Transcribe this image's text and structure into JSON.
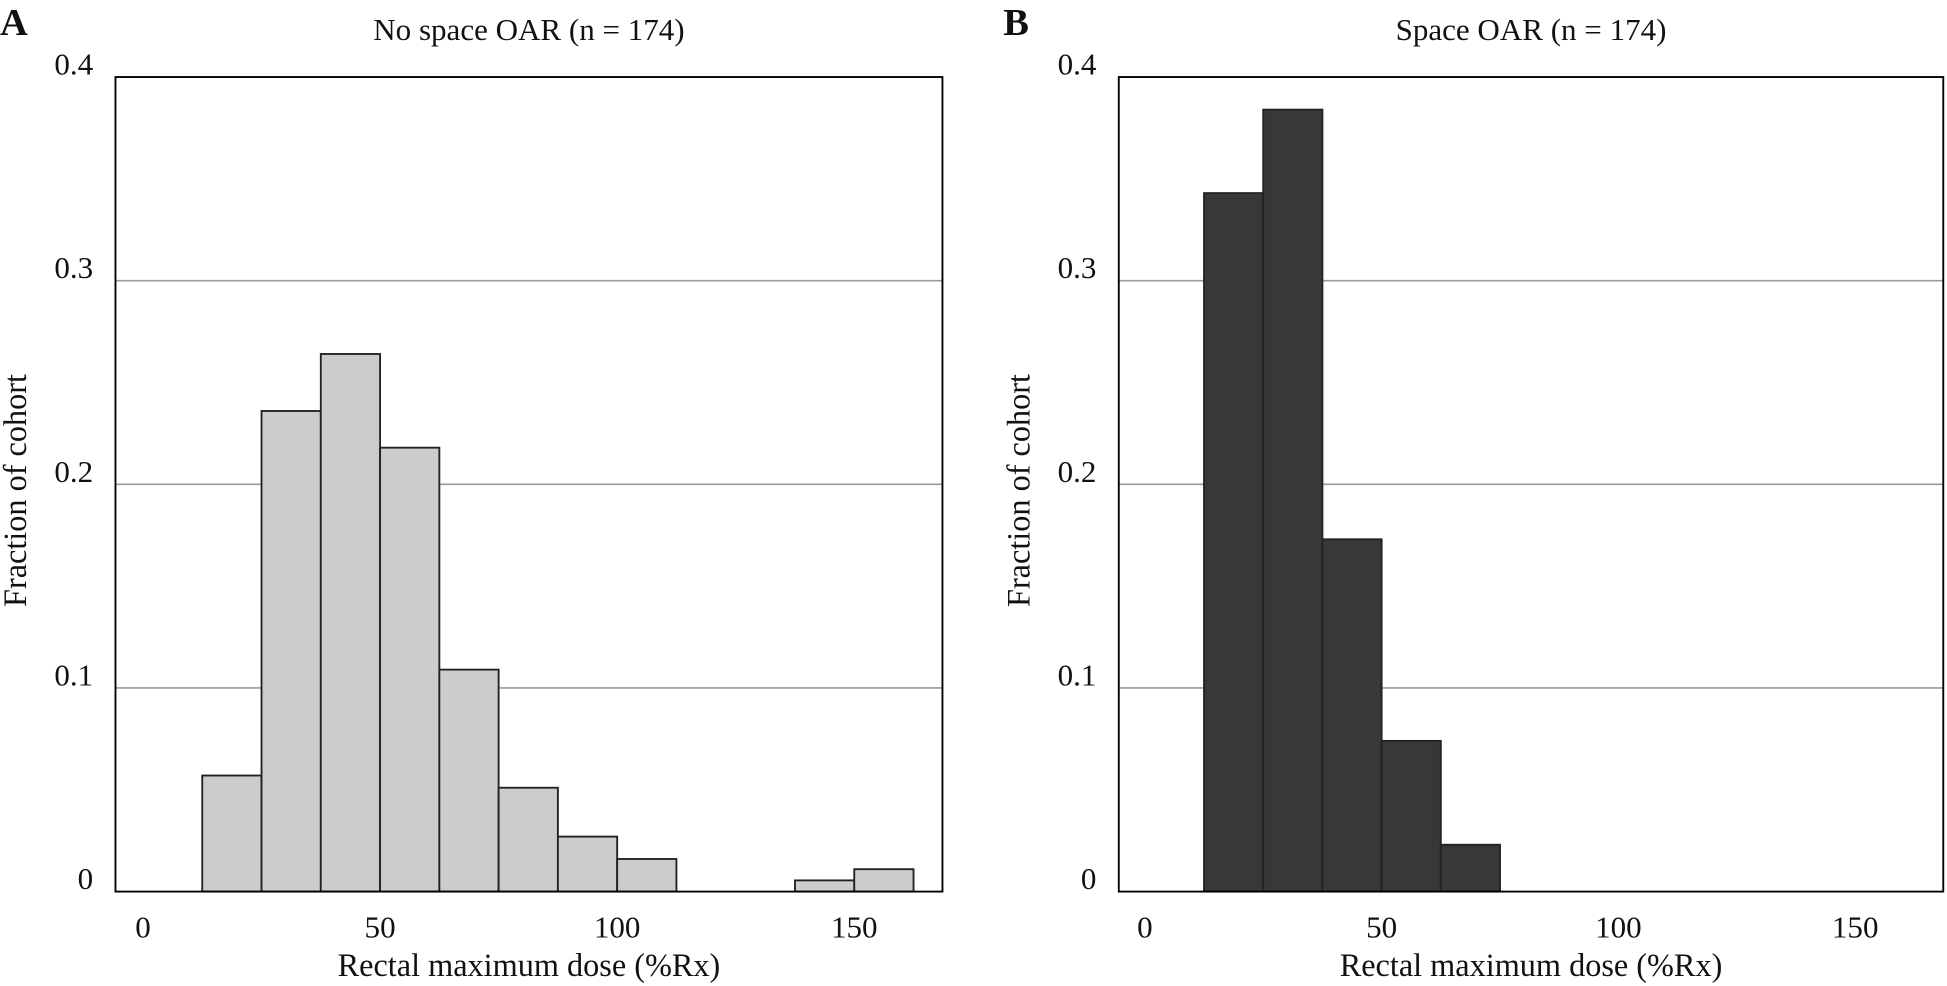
{
  "chart_data": [
    {
      "type": "histogram",
      "panel_label": "A",
      "title": "No space OAR (n = 174)",
      "xlabel": "Rectal maximum dose (%Rx)",
      "ylabel": "Fraction of cohort",
      "bins": [
        12.5,
        25,
        37.5,
        50,
        62.5,
        75,
        87.5,
        100,
        112.5,
        125,
        137.5,
        150,
        162.5
      ],
      "values": [
        0.057,
        0.236,
        0.264,
        0.218,
        0.109,
        0.051,
        0.027,
        0.016,
        0,
        0,
        0.0055,
        0.011
      ],
      "color": "#cccccc",
      "xlim": [
        -5.8,
        168.6
      ],
      "ylim": [
        0,
        0.4
      ],
      "xticks": [
        0,
        50,
        100,
        150
      ],
      "yticks": [
        0,
        0.1,
        0.2,
        0.3,
        0.4
      ],
      "grid": true
    },
    {
      "type": "histogram",
      "panel_label": "B",
      "title": "Space OAR (n = 174)",
      "xlabel": "Rectal maximum dose (%Rx)",
      "ylabel": "Fraction of cohort",
      "bins": [
        12.5,
        25,
        37.5,
        50,
        62.5,
        75
      ],
      "values": [
        0.343,
        0.384,
        0.173,
        0.074,
        0.023
      ],
      "color": "#383838",
      "xlim": [
        -5.5,
        168.6
      ],
      "ylim": [
        0,
        0.4
      ],
      "xticks": [
        0,
        50,
        100,
        150
      ],
      "yticks": [
        0,
        0.1,
        0.2,
        0.3,
        0.4
      ],
      "grid": true
    }
  ]
}
